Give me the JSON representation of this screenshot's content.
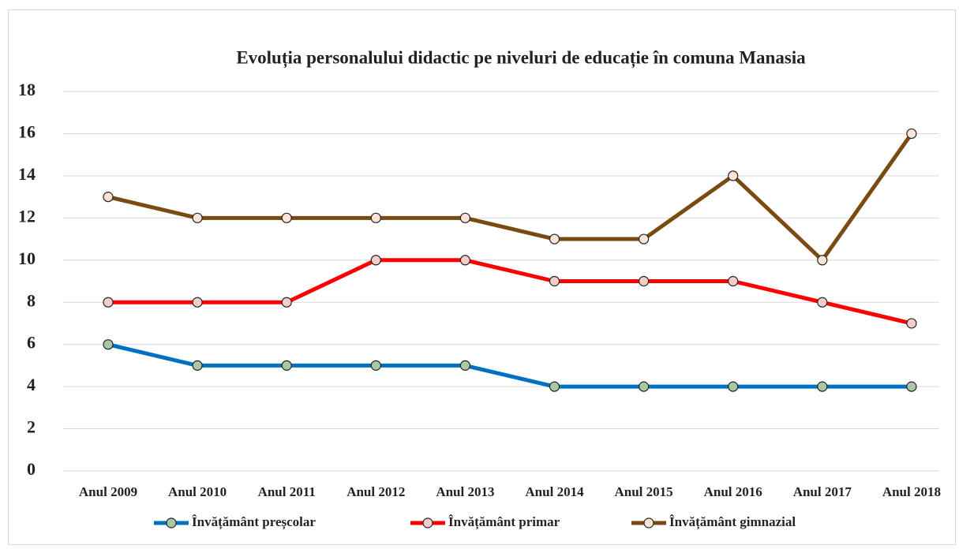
{
  "chart_data": {
    "type": "line",
    "title": "Evoluția personalului didactic pe niveluri de educație în comuna Manasia",
    "categories": [
      "Anul 2009",
      "Anul 2010",
      "Anul 2011",
      "Anul 2012",
      "Anul 2013",
      "Anul 2014",
      "Anul 2015",
      "Anul 2016",
      "Anul 2017",
      "Anul 2018"
    ],
    "series": [
      {
        "name": "Învățământ preșcolar",
        "color": "#0070c0",
        "marker": "#a9c9a4",
        "values": [
          6,
          5,
          5,
          5,
          5,
          4,
          4,
          4,
          4,
          4
        ]
      },
      {
        "name": "Învățământ primar",
        "color": "#ff0000",
        "marker": "#f4cccc",
        "values": [
          8,
          8,
          8,
          10,
          10,
          9,
          9,
          9,
          8,
          7
        ]
      },
      {
        "name": "Învățământ gimnazial",
        "color": "#7b4a12",
        "marker": "#fbe3d6",
        "values": [
          13,
          12,
          12,
          12,
          12,
          11,
          11,
          14,
          10,
          16
        ]
      }
    ],
    "ylim": [
      0,
      18
    ],
    "yticks": [
      0,
      2,
      4,
      6,
      8,
      10,
      12,
      14,
      16,
      18
    ],
    "grid": true,
    "legend": "bottom"
  }
}
